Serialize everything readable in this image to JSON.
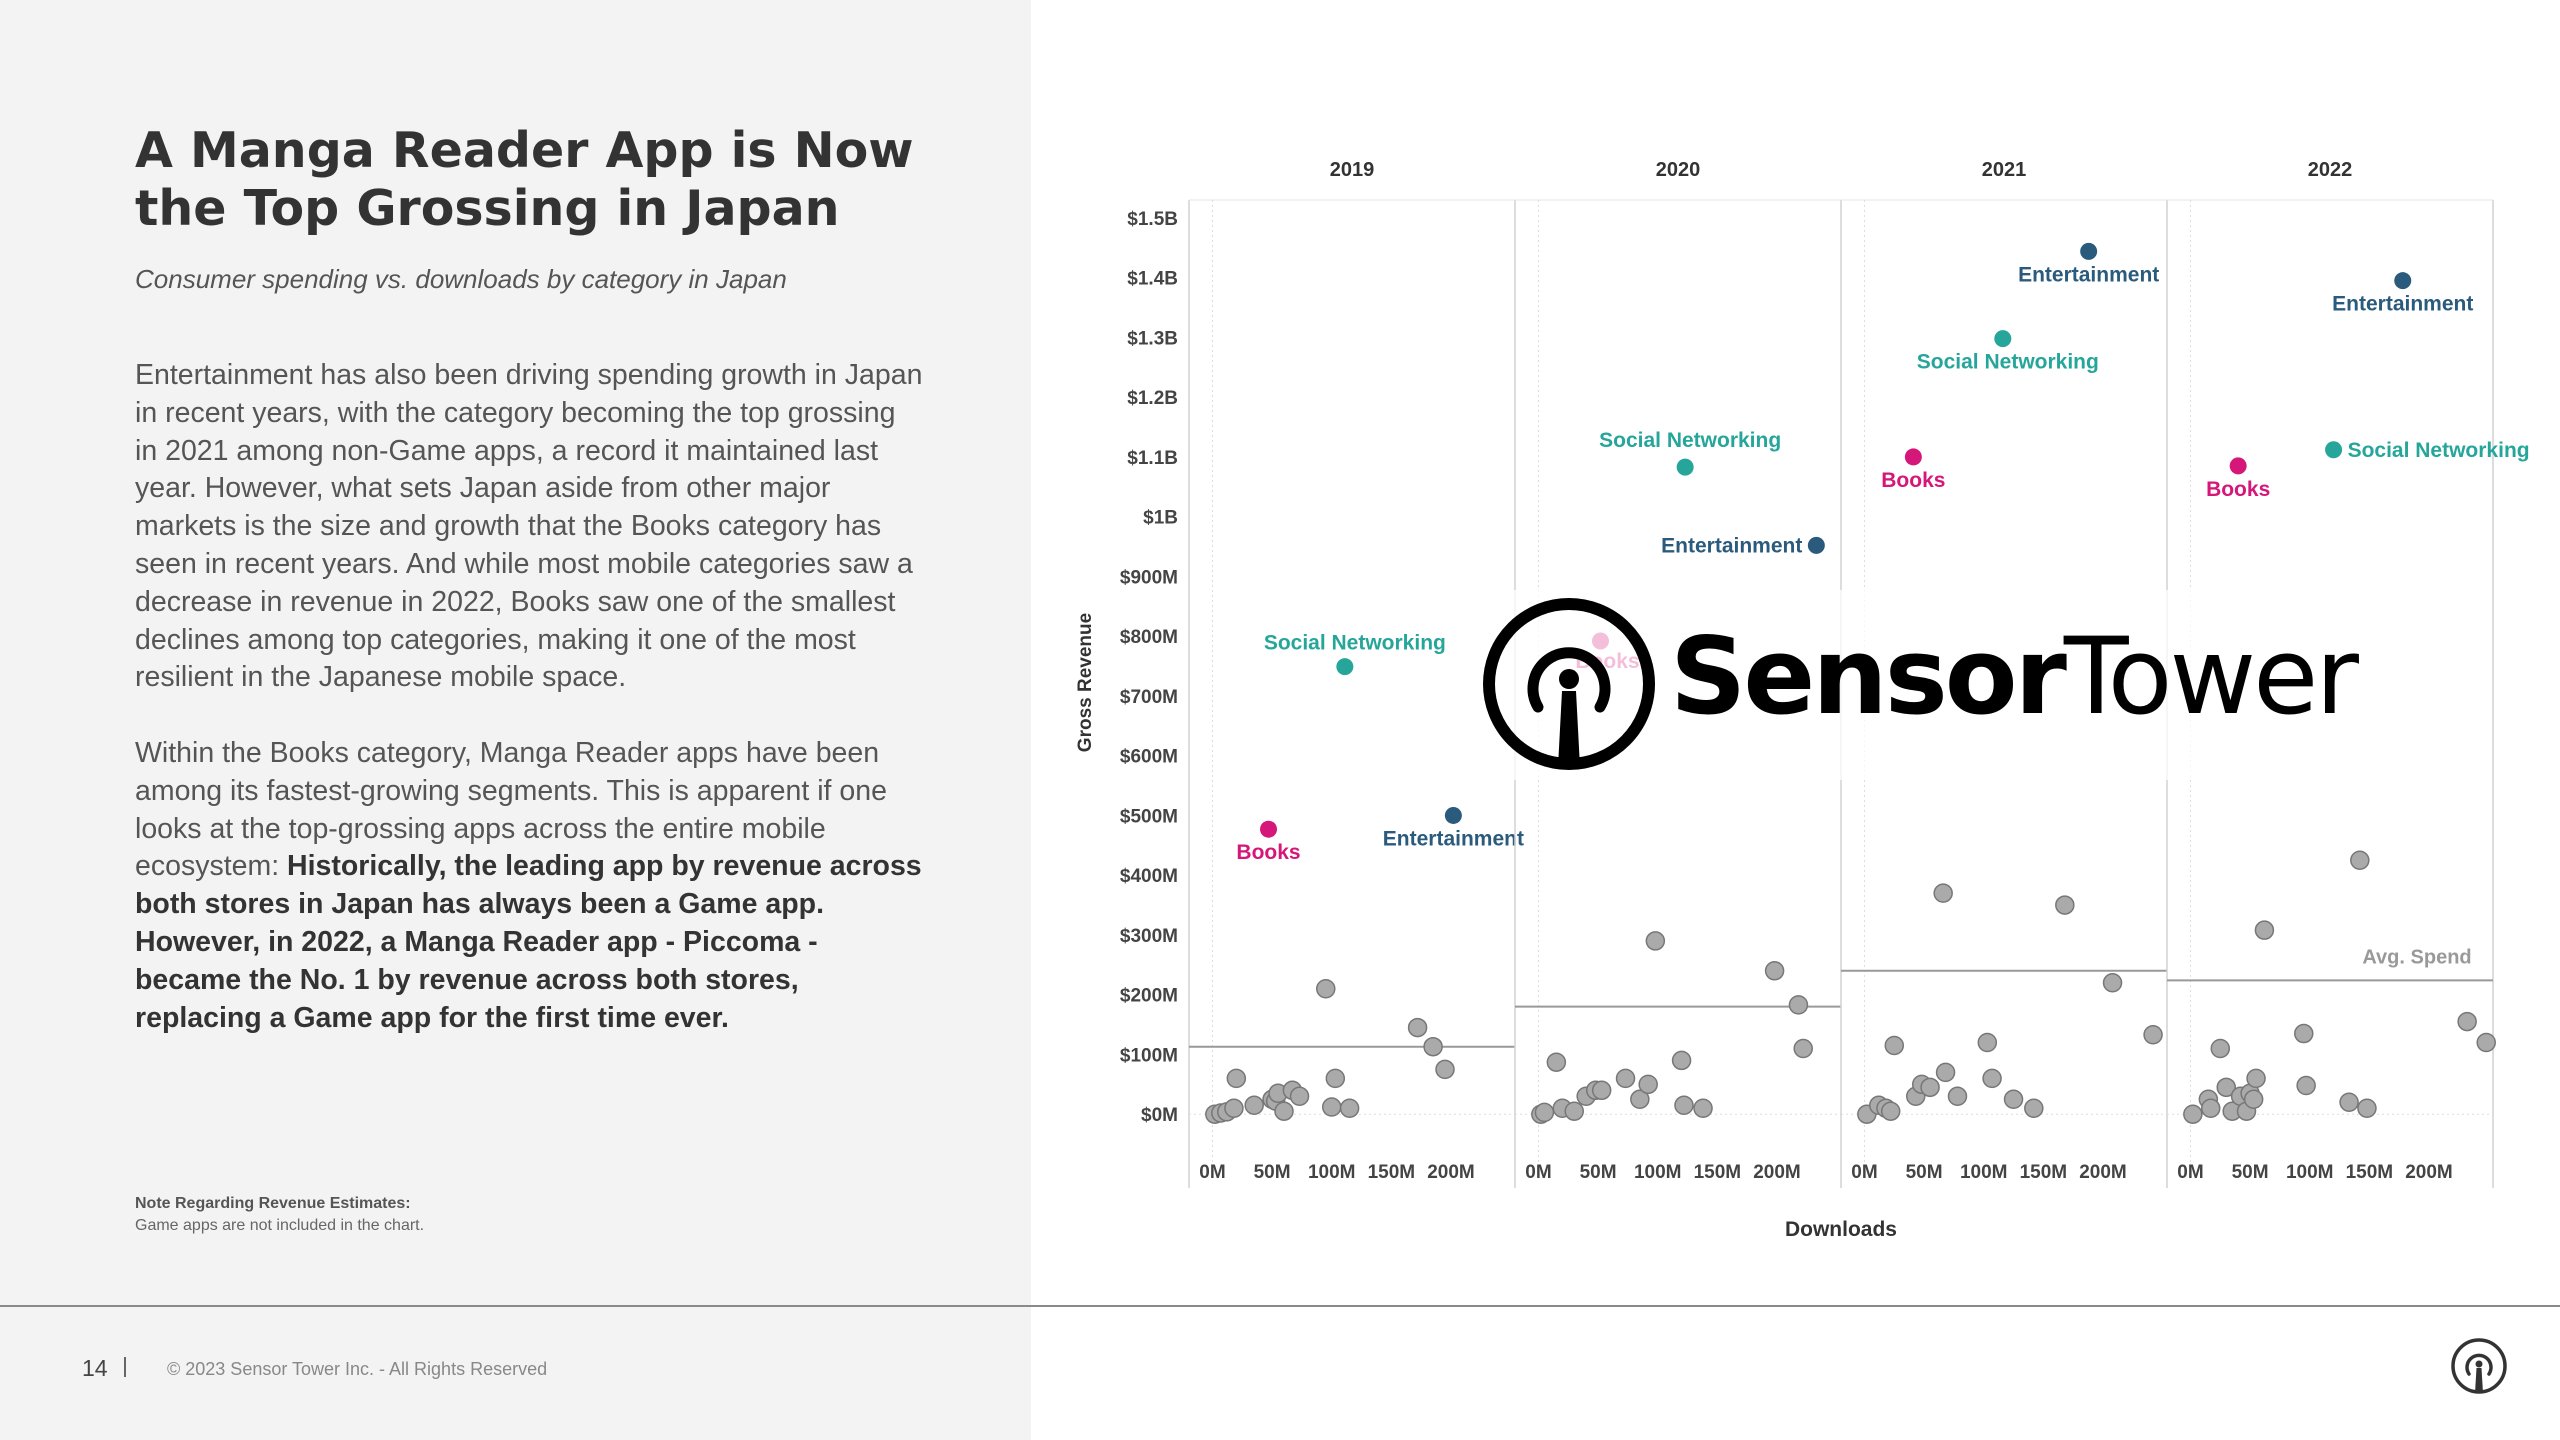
{
  "page": {
    "title": "A Manga Reader App is Now the Top Grossing in Japan",
    "subtitle": "Consumer spending vs. downloads by category in Japan",
    "paragraph1": "Entertainment has also been driving spending growth in Japan in recent years, with the category becoming the top grossing in 2021 among non-Game apps, a record it maintained last year. However, what sets Japan aside from other major markets is the size and growth that the Books category has seen in recent years. And while most mobile categories saw a decrease in revenue in 2022, Books saw one of the smallest declines among top categories, making it one of the most resilient in the Japanese mobile space.",
    "paragraph2_plain": "Within the Books category, Manga Reader apps have been among its fastest-growing segments. This is apparent if one looks at the top-grossing apps across the entire mobile ecosystem: ",
    "paragraph2_bold": "Historically, the leading app by revenue across both stores in Japan has always been a Game app. However, in 2022, a Manga Reader app - Piccoma - became the No. 1 by revenue across both stores, replacing a Game app for the first time ever.",
    "note_title": "Note Regarding Revenue Estimates:",
    "note_text": "Game apps are not included in the chart.",
    "page_number": "14",
    "copyright": "© 2023 Sensor Tower Inc. - All Rights Reserved",
    "watermark_brand_bold": "Sensor",
    "watermark_brand_light": "Tower"
  },
  "colors": {
    "Books": "#d6177a",
    "Social Networking": "#26a69a",
    "Entertainment": "#2a5a7c",
    "other": "#aaaaaa",
    "avg_line": "#999999"
  },
  "chart_data": {
    "type": "scatter",
    "xlabel": "Downloads",
    "ylabel": "Gross Revenue",
    "y_ticks": [
      "$0M",
      "$100M",
      "$200M",
      "$300M",
      "$400M",
      "$500M",
      "$600M",
      "$700M",
      "$800M",
      "$900M",
      "$1B",
      "$1.1B",
      "$1.2B",
      "$1.3B",
      "$1.4B",
      "$1.5B"
    ],
    "x_ticks": [
      "0M",
      "50M",
      "100M",
      "150M",
      "200M"
    ],
    "x_tick_values": [
      0,
      50,
      100,
      150,
      200
    ],
    "xlim": [
      -18,
      252
    ],
    "ylim": [
      -85,
      1530
    ],
    "x_units": "M downloads",
    "y_units": "$M",
    "avg_line_label": "Avg. Spend",
    "panels": [
      {
        "year": "2019",
        "avg_spend": 113,
        "highlighted": [
          {
            "category": "Books",
            "x": 47,
            "y": 477
          },
          {
            "category": "Social Networking",
            "x": 111,
            "y": 749
          },
          {
            "category": "Entertainment",
            "x": 202,
            "y": 500
          }
        ],
        "others": [
          [
            2,
            0
          ],
          [
            7,
            2
          ],
          [
            12,
            4
          ],
          [
            20,
            60
          ],
          [
            18,
            10
          ],
          [
            35,
            15
          ],
          [
            50,
            25
          ],
          [
            53,
            22
          ],
          [
            60,
            5
          ],
          [
            55,
            35
          ],
          [
            67,
            40
          ],
          [
            73,
            30
          ],
          [
            95,
            210
          ],
          [
            103,
            60
          ],
          [
            100,
            12
          ],
          [
            115,
            10
          ],
          [
            172,
            145
          ],
          [
            185,
            113
          ],
          [
            195,
            75
          ]
        ]
      },
      {
        "year": "2020",
        "avg_spend": 180,
        "highlighted": [
          {
            "category": "Books",
            "x": 52,
            "y": 792
          },
          {
            "category": "Social Networking",
            "x": 123,
            "y": 1083
          },
          {
            "category": "Entertainment",
            "x": 233,
            "y": 952
          }
        ],
        "others": [
          [
            2,
            0
          ],
          [
            5,
            3
          ],
          [
            15,
            87
          ],
          [
            20,
            10
          ],
          [
            30,
            5
          ],
          [
            40,
            30
          ],
          [
            48,
            40
          ],
          [
            53,
            40
          ],
          [
            73,
            60
          ],
          [
            85,
            25
          ],
          [
            92,
            50
          ],
          [
            98,
            290
          ],
          [
            120,
            90
          ],
          [
            122,
            15
          ],
          [
            138,
            10
          ],
          [
            198,
            240
          ],
          [
            218,
            183
          ],
          [
            222,
            110
          ]
        ]
      },
      {
        "year": "2021",
        "avg_spend": 240,
        "highlighted": [
          {
            "category": "Books",
            "x": 41,
            "y": 1100
          },
          {
            "category": "Social Networking",
            "x": 116,
            "y": 1298
          },
          {
            "category": "Entertainment",
            "x": 188,
            "y": 1444
          }
        ],
        "others": [
          [
            2,
            0
          ],
          [
            12,
            15
          ],
          [
            18,
            10
          ],
          [
            22,
            5
          ],
          [
            25,
            115
          ],
          [
            43,
            30
          ],
          [
            48,
            50
          ],
          [
            55,
            45
          ],
          [
            66,
            370
          ],
          [
            68,
            70
          ],
          [
            78,
            30
          ],
          [
            103,
            120
          ],
          [
            107,
            60
          ],
          [
            125,
            25
          ],
          [
            142,
            10
          ],
          [
            168,
            350
          ],
          [
            208,
            220
          ],
          [
            242,
            133
          ]
        ]
      },
      {
        "year": "2022",
        "avg_spend": 224,
        "highlighted": [
          {
            "category": "Books",
            "x": 40,
            "y": 1085
          },
          {
            "category": "Social Networking",
            "x": 120,
            "y": 1112
          },
          {
            "category": "Entertainment",
            "x": 178,
            "y": 1395
          }
        ],
        "others": [
          [
            2,
            0
          ],
          [
            15,
            25
          ],
          [
            17,
            10
          ],
          [
            25,
            110
          ],
          [
            30,
            45
          ],
          [
            35,
            5
          ],
          [
            42,
            30
          ],
          [
            47,
            5
          ],
          [
            50,
            35
          ],
          [
            55,
            60
          ],
          [
            53,
            25
          ],
          [
            62,
            308
          ],
          [
            95,
            135
          ],
          [
            97,
            48
          ],
          [
            142,
            425
          ],
          [
            133,
            20
          ],
          [
            148,
            10
          ],
          [
            232,
            155
          ],
          [
            248,
            120
          ]
        ]
      }
    ]
  }
}
